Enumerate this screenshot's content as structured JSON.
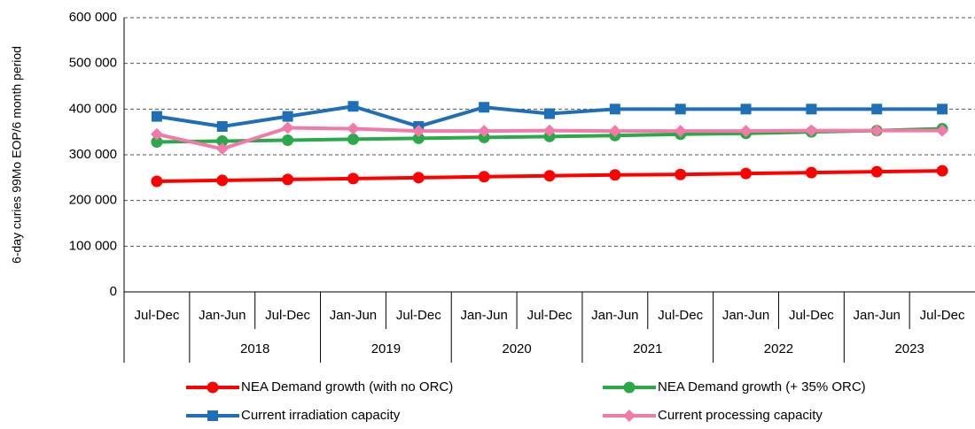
{
  "chart_data": {
    "type": "line",
    "y_label": "6-day curies 99Mo EOP/6 month period",
    "groups": [
      {
        "categories": [
          "Jul-Dec"
        ]
      },
      {
        "label": "2018",
        "categories": [
          "Jan-Jun",
          "Jul-Dec"
        ]
      },
      {
        "label": "2019",
        "categories": [
          "Jan-Jun",
          "Jul-Dec"
        ]
      },
      {
        "label": "2020",
        "categories": [
          "Jan-Jun",
          "Jul-Dec"
        ]
      },
      {
        "label": "2021",
        "categories": [
          "Jan-Jun",
          "Jul-Dec"
        ]
      },
      {
        "label": "2022",
        "categories": [
          "Jan-Jun",
          "Jul-Dec"
        ]
      },
      {
        "label": "2023",
        "categories": [
          "Jan-Jun",
          "Jul-Dec"
        ]
      }
    ],
    "series": [
      {
        "name": "NEA Demand growth (with no ORC)",
        "color": "#ff0000",
        "marker": "circle",
        "values": [
          242000,
          244000,
          246000,
          248000,
          250000,
          252000,
          254000,
          256000,
          257000,
          259000,
          261000,
          263000,
          265000
        ]
      },
      {
        "name": "NEA Demand growth (+ 35% ORC)",
        "color": "#2aa84a",
        "marker": "circle",
        "values": [
          328000,
          330000,
          332000,
          334000,
          336000,
          338000,
          340000,
          342000,
          345000,
          347000,
          350000,
          353000,
          357000
        ]
      },
      {
        "name": "Current irradiation capacity",
        "color": "#1f6fb8",
        "marker": "square",
        "values": [
          384000,
          362000,
          384000,
          406000,
          362000,
          404000,
          390000,
          400000,
          400000,
          400000,
          400000,
          400000,
          400000
        ]
      },
      {
        "name": "Current processing capacity",
        "color": "#f27aa8",
        "marker": "diamond",
        "values": [
          345000,
          313000,
          359000,
          357000,
          352000,
          352000,
          353000,
          352000,
          352000,
          352000,
          353000,
          353000,
          353000
        ]
      }
    ],
    "ylim": [
      0,
      600000
    ],
    "yticks": [
      0,
      {
        "value": 100000,
        "label": "100 000"
      },
      {
        "value": 200000,
        "label": "200 000"
      },
      {
        "value": 300000,
        "label": "300 000"
      },
      {
        "value": 400000,
        "label": "400 000"
      },
      {
        "value": 500000,
        "label": "500 000"
      },
      {
        "value": 600000,
        "label": "600 000"
      }
    ],
    "grid": true
  }
}
